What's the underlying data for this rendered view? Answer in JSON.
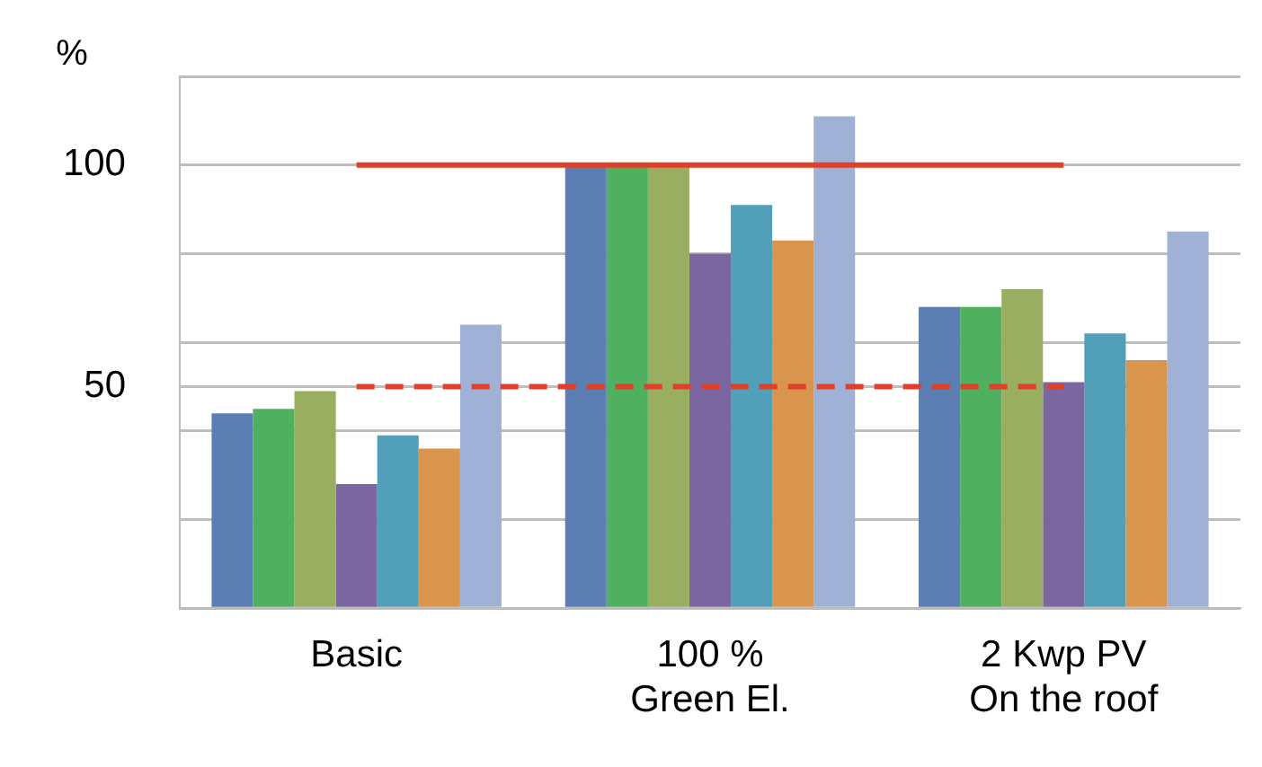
{
  "chart_data": {
    "type": "bar",
    "ylabel": "%",
    "categories": [
      "Basic",
      "100 %\nGreen El.",
      "2 Kwp PV\nOn the roof"
    ],
    "series": [
      {
        "color": "#5b7fb3",
        "values": [
          44,
          100,
          68
        ]
      },
      {
        "color": "#4fb15f",
        "values": [
          45,
          100,
          68
        ]
      },
      {
        "color": "#9aae62",
        "values": [
          49,
          100,
          72
        ]
      },
      {
        "color": "#7b67a0",
        "values": [
          28,
          80,
          51
        ]
      },
      {
        "color": "#529fba",
        "values": [
          39,
          91,
          62
        ]
      },
      {
        "color": "#d9944d",
        "values": [
          36,
          83,
          56
        ]
      },
      {
        "color": "#9fb2d6",
        "values": [
          64,
          111,
          85
        ]
      }
    ],
    "ylim": [
      0,
      120
    ],
    "yticks": [
      {
        "value": 0,
        "label": null
      },
      {
        "value": 20,
        "label": null
      },
      {
        "value": 40,
        "label": null
      },
      50,
      {
        "value": 60,
        "label": null
      },
      {
        "value": 80,
        "label": null
      },
      100,
      {
        "value": 120,
        "label": null
      }
    ],
    "ref_lines": [
      {
        "axis": "y",
        "value": 100,
        "color": "#e0402a",
        "line_style": "solid"
      },
      {
        "axis": "y",
        "value": 50,
        "color": "#e0402a",
        "line_style": "dashed"
      }
    ],
    "grid": "y",
    "legend": false
  }
}
